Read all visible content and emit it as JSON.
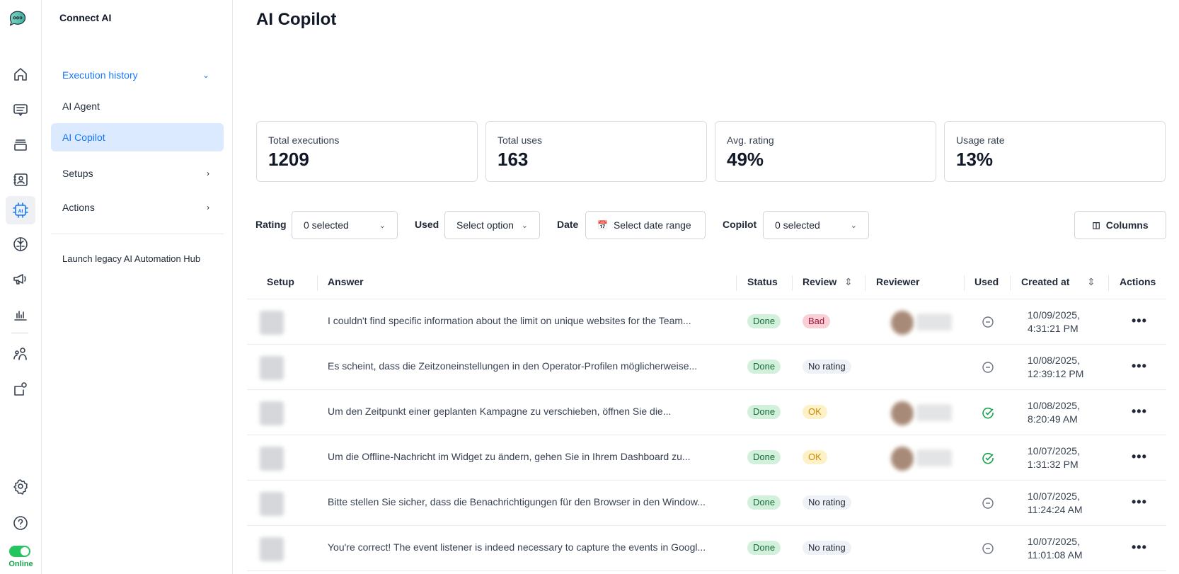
{
  "app": {
    "name": "Connect AI",
    "status": "Online"
  },
  "rail": {
    "icons": [
      "chat-logo-icon",
      "home-icon",
      "conversations-icon",
      "inbox-stack-icon",
      "contacts-icon",
      "ai-chip-icon",
      "brain-icon",
      "megaphone-icon",
      "reports-icon",
      "team-icon",
      "integrations-icon",
      "settings-icon",
      "help-icon"
    ],
    "active": "ai-chip-icon",
    "toggle_on": true
  },
  "sidebar": {
    "section": "Execution history",
    "items": [
      {
        "label": "AI Agent"
      },
      {
        "label": "AI Copilot"
      }
    ],
    "setups": "Setups",
    "actions": "Actions",
    "legacy": "Launch legacy AI Automation Hub"
  },
  "page": {
    "title": "AI Copilot"
  },
  "stats": [
    {
      "label": "Total executions",
      "value": "1209"
    },
    {
      "label": "Total uses",
      "value": "163"
    },
    {
      "label": "Avg. rating",
      "value": "49%"
    },
    {
      "label": "Usage rate",
      "value": "13%"
    }
  ],
  "filters": {
    "rating": {
      "label": "Rating",
      "value": "0 selected"
    },
    "used": {
      "label": "Used",
      "value": "Select option"
    },
    "date": {
      "label": "Date",
      "value": "Select date range"
    },
    "copilot": {
      "label": "Copilot",
      "value": "0 selected"
    },
    "columns": "Columns"
  },
  "table": {
    "headers": [
      "Setup",
      "Answer",
      "Status",
      "Review",
      "Reviewer",
      "Used",
      "Created at",
      "Actions"
    ],
    "rows": [
      {
        "answer": "I couldn't find specific information about the limit on unique websites for the Team...",
        "status": "Done",
        "review": "Bad",
        "reviewer": true,
        "used": false,
        "date": "10/09/2025,",
        "time": "4:31:21 PM"
      },
      {
        "answer": "Es scheint, dass die Zeitzoneinstellungen in den Operator-Profilen möglicherweise...",
        "status": "Done",
        "review": "No rating",
        "reviewer": false,
        "used": false,
        "date": "10/08/2025,",
        "time": "12:39:12 PM"
      },
      {
        "answer": "Um den Zeitpunkt einer geplanten Kampagne zu verschieben, öffnen Sie die...",
        "status": "Done",
        "review": "OK",
        "reviewer": true,
        "used": true,
        "date": "10/08/2025,",
        "time": "8:20:49 AM"
      },
      {
        "answer": "Um die Offline-Nachricht im Widget zu ändern, gehen Sie in Ihrem Dashboard zu...",
        "status": "Done",
        "review": "OK",
        "reviewer": true,
        "used": true,
        "date": "10/07/2025,",
        "time": "1:31:32 PM"
      },
      {
        "answer": "Bitte stellen Sie sicher, dass die Benachrichtigungen für den Browser in den Window...",
        "status": "Done",
        "review": "No rating",
        "reviewer": false,
        "used": false,
        "date": "10/07/2025,",
        "time": "11:24:24 AM"
      },
      {
        "answer": "You're correct! The event listener is indeed necessary to capture the events in Googl...",
        "status": "Done",
        "review": "No rating",
        "reviewer": false,
        "used": false,
        "date": "10/07/2025,",
        "time": "11:01:08 AM"
      }
    ]
  }
}
